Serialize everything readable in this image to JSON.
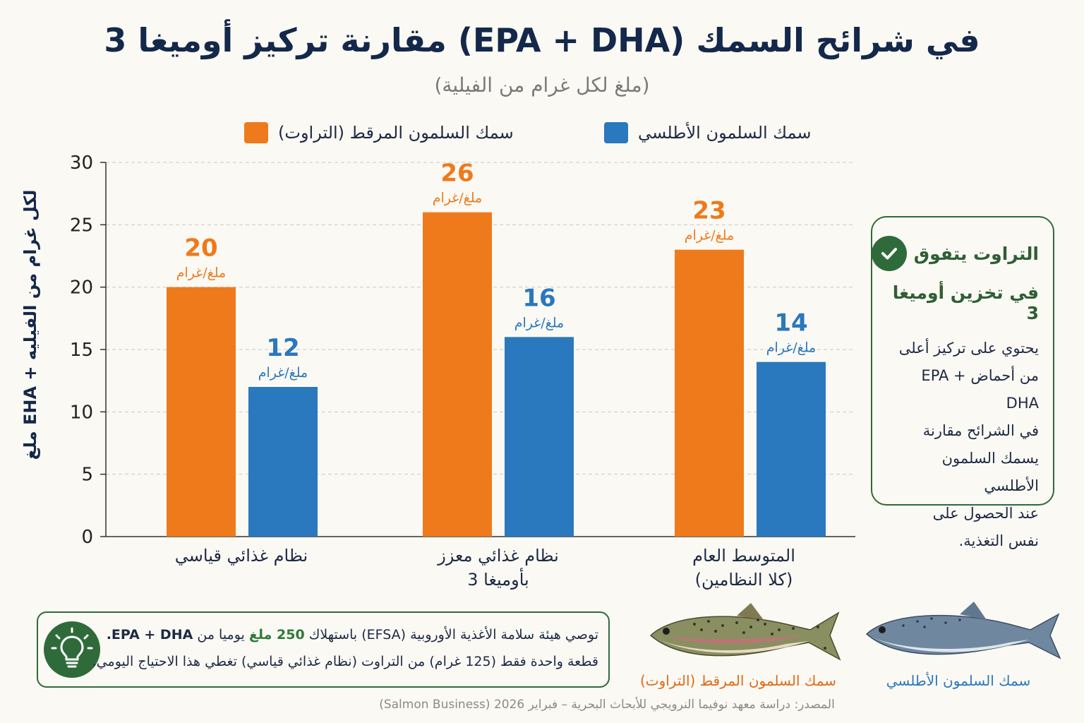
{
  "title": "مقارنة تركيز أوميغا 3 (EPA + DHA) في شرائح السمك",
  "subtitle": "(ملغ لكل غرام من الفيلية)",
  "colors": {
    "trout": "#ee7a1c",
    "atlantic": "#2a78bd",
    "accent_green": "#2f6b3a"
  },
  "chart_data": {
    "type": "bar",
    "title": "مقارنة تركيز أوميغا 3 (EPA + DHA) في شرائح السمك",
    "subtitle": "(ملغ لكل غرام من الفيلية)",
    "ylabel": "ملغ EHA + لكل غرام من الفيليه",
    "xlabel": "",
    "ylim": [
      0,
      30
    ],
    "yticks": [
      0,
      5,
      10,
      15,
      20,
      25,
      30
    ],
    "grid": true,
    "legend_position": "top",
    "categories": [
      "نظام غذائي قياسي",
      "نظام غذائي معزز بأوميغا 3",
      "المتوسط العام (كلا النظامين)"
    ],
    "category_lines": [
      [
        "نظام غذائي قياسي"
      ],
      [
        "نظام غذائي معزز",
        "بأوميغا  3"
      ],
      [
        "المتوسط العام",
        "(كلا النظامين)"
      ]
    ],
    "series": [
      {
        "name": "سمك السلمون المرقط (التراوت)",
        "color": "#ee7a1c",
        "values": [
          20,
          26,
          23
        ]
      },
      {
        "name": "سمك السلمون الأطلسي",
        "color": "#2a78bd",
        "values": [
          12,
          16,
          14
        ]
      }
    ],
    "unit_label": "ملغ/غرام"
  },
  "callout": {
    "title_line1": "التراوت يتفوق",
    "title_line2": "في تخزين أوميغا 3",
    "body_lines": [
      "يحتوي على تركيز أعلى",
      "من أحماض EPA + DHA",
      "في الشرائح مقارنة",
      "يسمك السلمون الأطلسي",
      "عند الحصول على",
      "نفس التغذية."
    ],
    "icon": "check-circle-icon"
  },
  "note": {
    "line1_a": "توصي هيئة سلامة الأغذية الأوروبية (EFSA) باستهلاك ",
    "line1_b": "250 ملغ",
    "line1_c": " يوميا من ",
    "line1_d": "EPA + DHA.",
    "line2": "قطعة واحدة فقط (125 غرام) من التراوت (نظام غذائي قياسي) تغطي هذا الاحتياج اليومي.",
    "icon": "lightbulb-icon"
  },
  "fish": {
    "trout_caption": "سمك السلمون المرقط (التراوت)",
    "atlantic_caption": "سمك السلمون الأطلسي"
  },
  "source": "المصدر: دراسة معهد نوفيما النرويجي للأبحاث البحرية – فبراير 2026 (Salmon Business)"
}
